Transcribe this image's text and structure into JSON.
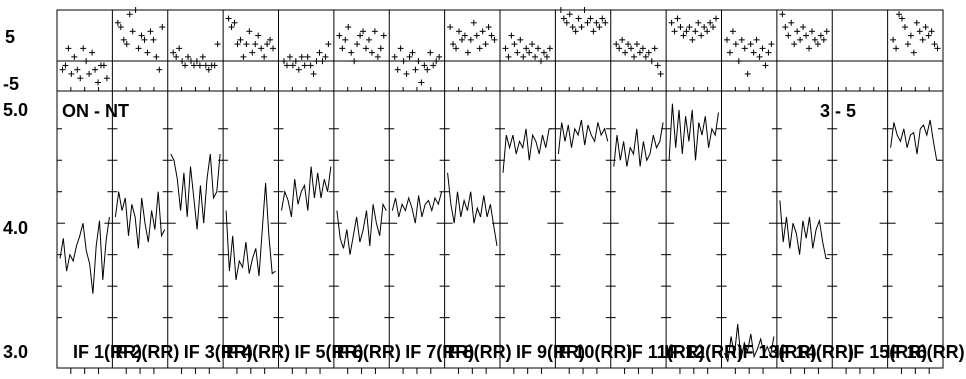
{
  "chart_data": {
    "type": "line",
    "top_label": "ON - NT",
    "right_label": "3 - 5",
    "phase_panel": {
      "type": "scatter",
      "y_tick_labels": [
        "5",
        "-5"
      ],
      "y_ticks": [
        5,
        -5
      ],
      "ylim": [
        -7,
        12
      ]
    },
    "amp_panel": {
      "y_tick_labels": [
        "5.0",
        "4.0",
        "3.0"
      ],
      "y_ticks": [
        5.0,
        4.0,
        3.0
      ],
      "ylim": [
        2.85,
        5.05
      ]
    },
    "panels": [
      {
        "label": "IF 1(RR)",
        "phase": [
          -2,
          -1,
          3,
          -3,
          1,
          -2,
          -4,
          3,
          0,
          -3,
          2,
          -2,
          -5,
          -1,
          -1,
          -4
        ],
        "amp": [
          3.72,
          3.88,
          3.62,
          3.75,
          3.7,
          3.82,
          3.9,
          4.0,
          3.78,
          3.68,
          3.44,
          3.82,
          4.02,
          3.55,
          3.86,
          4.05
        ]
      },
      {
        "label": "IF 2(RR)",
        "phase": [
          9,
          8,
          5,
          4,
          11,
          7,
          12,
          3,
          6,
          5,
          2,
          7,
          5,
          1,
          -2,
          8
        ],
        "amp": [
          4.05,
          4.25,
          4.1,
          4.2,
          3.9,
          4.15,
          4.05,
          3.8,
          4.2,
          4.0,
          3.85,
          4.1,
          3.95,
          4.25,
          3.9,
          3.95
        ]
      },
      {
        "label": "IF 3(RR)",
        "phase": [
          2,
          1,
          3,
          0,
          -1,
          1,
          0,
          -1,
          0,
          -1,
          1,
          -1,
          -2,
          -1,
          -1,
          4
        ],
        "amp": [
          4.55,
          4.5,
          4.35,
          4.1,
          4.4,
          4.05,
          4.45,
          4.2,
          3.95,
          4.3,
          4.0,
          4.35,
          4.55,
          4.2,
          4.25,
          4.55
        ]
      },
      {
        "label": "IF 4(RR)",
        "phase": [
          10,
          8,
          9,
          4,
          5,
          1,
          4,
          7,
          2,
          4,
          6,
          3,
          1,
          4,
          5,
          3
        ],
        "amp": [
          4.1,
          3.62,
          3.9,
          3.55,
          3.7,
          3.65,
          3.85,
          3.6,
          3.72,
          3.8,
          3.58,
          3.95,
          4.32,
          3.9,
          3.6,
          3.62
        ]
      },
      {
        "label": "IF 5(RR)",
        "phase": [
          0,
          -1,
          1,
          -1,
          0,
          -2,
          1,
          -1,
          1,
          -1,
          -3,
          0,
          2,
          0,
          1,
          4
        ],
        "amp": [
          4.1,
          4.25,
          4.18,
          4.05,
          4.35,
          4.15,
          4.25,
          4.3,
          4.1,
          4.45,
          4.2,
          4.4,
          4.2,
          4.35,
          4.25,
          4.45
        ]
      },
      {
        "label": "IF 6(RR)",
        "phase": [
          6,
          3,
          5,
          8,
          2,
          0,
          4,
          6,
          7,
          3,
          5,
          2,
          7,
          1,
          3,
          6
        ],
        "amp": [
          4.1,
          3.88,
          3.8,
          3.95,
          3.75,
          3.9,
          4.05,
          3.85,
          3.95,
          4.1,
          3.82,
          4.15,
          4.0,
          3.9,
          4.15,
          4.1
        ]
      },
      {
        "label": "IF 7(RR)",
        "phase": [
          1,
          -2,
          3,
          0,
          -3,
          1,
          2,
          -2,
          0,
          -5,
          -1,
          -2,
          2,
          -1,
          0,
          1
        ],
        "amp": [
          4.1,
          4.2,
          4.05,
          4.15,
          4.1,
          4.2,
          4.12,
          4.0,
          4.22,
          4.05,
          4.15,
          4.18,
          4.1,
          4.2,
          4.15,
          4.25
        ]
      },
      {
        "label": "IF 8(RR)",
        "phase": [
          8,
          4,
          3,
          7,
          5,
          6,
          2,
          5,
          9,
          6,
          3,
          7,
          4,
          8,
          6,
          5
        ],
        "amp": [
          4.4,
          4.15,
          4.0,
          4.25,
          4.05,
          4.18,
          4.1,
          4.25,
          4.0,
          4.12,
          4.05,
          4.22,
          4.05,
          4.15,
          3.98,
          3.82
        ]
      },
      {
        "label": "IF 9(RR)",
        "phase": [
          3,
          1,
          6,
          4,
          2,
          5,
          1,
          3,
          2,
          4,
          1,
          3,
          0,
          2,
          1,
          3
        ],
        "amp": [
          4.4,
          4.7,
          4.6,
          4.7,
          4.55,
          4.65,
          4.6,
          4.75,
          4.5,
          4.7,
          4.65,
          4.55,
          4.7,
          4.6,
          4.75,
          4.75
        ]
      },
      {
        "label": "IF 10(RR)",
        "phase": [
          12,
          10,
          9,
          11,
          8,
          7,
          10,
          8,
          12,
          9,
          10,
          7,
          9,
          8,
          10,
          9
        ],
        "amp": [
          4.55,
          4.8,
          4.65,
          4.78,
          4.6,
          4.75,
          4.7,
          4.82,
          4.62,
          4.78,
          4.7,
          4.65,
          4.8,
          4.7,
          4.75,
          4.65
        ]
      },
      {
        "label": "IF 11(RR)",
        "phase": [
          4,
          3,
          5,
          2,
          4,
          3,
          1,
          4,
          2,
          3,
          1,
          2,
          0,
          3,
          -1,
          -3
        ],
        "amp": [
          4.45,
          4.7,
          4.5,
          4.65,
          4.45,
          4.6,
          4.55,
          4.75,
          4.45,
          4.65,
          4.5,
          4.55,
          4.7,
          4.6,
          4.65,
          4.8
        ]
      },
      {
        "label": "IF 12(RR)",
        "phase": [
          9,
          7,
          10,
          8,
          6,
          7,
          8,
          5,
          7,
          9,
          6,
          8,
          7,
          9,
          8,
          10
        ],
        "amp": [
          4.5,
          4.95,
          4.6,
          4.9,
          4.55,
          4.85,
          4.65,
          4.9,
          4.5,
          4.8,
          4.7,
          4.85,
          4.6,
          4.75,
          4.7,
          4.88
        ]
      },
      {
        "label": "IF 13(RR)",
        "phase": [
          5,
          2,
          7,
          4,
          0,
          5,
          3,
          -3,
          4,
          2,
          5,
          1,
          3,
          -1,
          2,
          4
        ],
        "amp": [
          2.97,
          2.9,
          3.1,
          2.95,
          3.2,
          2.92,
          3.05,
          2.98,
          3.12,
          2.94,
          3.0,
          3.08,
          2.96,
          3.02,
          2.95,
          3.1
        ]
      },
      {
        "label": "IF 14(RR)",
        "phase": [
          11,
          8,
          6,
          9,
          4,
          7,
          5,
          8,
          6,
          3,
          7,
          5,
          4,
          6,
          5,
          7
        ],
        "amp": [
          4.18,
          3.85,
          4.05,
          3.8,
          4.0,
          3.92,
          3.75,
          4.02,
          3.88,
          4.05,
          3.8,
          3.95,
          4.02,
          3.85,
          3.72,
          3.72
        ]
      },
      {
        "label": "IF 15(RR)",
        "phase": [],
        "amp": []
      },
      {
        "label": "IF 16(RR)",
        "phase": [
          5,
          3,
          11,
          10,
          8,
          4,
          6,
          2,
          9,
          7,
          5,
          8,
          6,
          7,
          4,
          3
        ],
        "amp": [
          4.6,
          4.8,
          4.7,
          4.65,
          4.75,
          4.6,
          4.7,
          4.72,
          4.55,
          4.75,
          4.78,
          4.7,
          4.82,
          4.65,
          4.5,
          4.5
        ]
      }
    ]
  }
}
